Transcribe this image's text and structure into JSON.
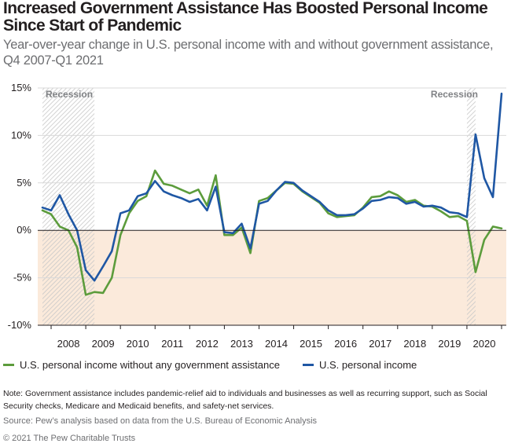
{
  "header": {
    "title": "Increased Government Assistance Has Boosted Personal Income Since Start of Pandemic",
    "subtitle": "Year-over-year change in U.S. personal income with and without government assistance, Q4 2007-Q1 2021"
  },
  "legend": {
    "items": [
      {
        "label": "U.S. personal income without any government assistance",
        "color": "#5c9c3c"
      },
      {
        "label": "U.S. personal income",
        "color": "#1f57a4"
      }
    ]
  },
  "footer": {
    "note": "Note: Government assistance includes pandemic-relief aid to individuals and businesses as well as recurring support, such as Social Security checks, Medicare and Medicaid benefits, and safety-net services.",
    "source": "Source: Pew’s analysis based on data from the U.S. Bureau of Economic Analysis",
    "copyright": "© 2021 The Pew Charitable Trusts"
  },
  "colors": {
    "negative_region": "#fbeadb",
    "recession_hatch": "#c8c8c8",
    "gridline": "#d9d9d9",
    "zero_line": "#231f20",
    "axis_text": "#231f20",
    "recession_text": "#808285"
  },
  "chart_data": {
    "type": "line",
    "title": "Increased Government Assistance Has Boosted Personal Income Since Start of Pandemic",
    "subtitle": "Year-over-year change in U.S. personal income with and without government assistance, Q4 2007-Q1 2021",
    "xlabel": "",
    "ylabel": "",
    "x_start": "2007 Q4",
    "x_end": "2021 Q1",
    "xlim": [
      "2007 Q4",
      "2021 Q1"
    ],
    "x_tick_labels": [
      "2008",
      "2009",
      "2010",
      "2011",
      "2012",
      "2013",
      "2014",
      "2015",
      "2016",
      "2017",
      "2018",
      "2019",
      "2020"
    ],
    "y_tick_labels": [
      "15%",
      "10%",
      "5%",
      "0%",
      "-5%",
      "-10%"
    ],
    "y_ticks": [
      15,
      10,
      5,
      0,
      -5,
      -10
    ],
    "ylim": [
      -10,
      15
    ],
    "grid": true,
    "legend_position": "bottom",
    "negative_region_shaded": true,
    "recessions": [
      {
        "label": "Recession",
        "start": "2007 Q4",
        "end": "2009 Q2"
      },
      {
        "label": "Recession",
        "start": "2020 Q1",
        "end": "2020 Q2"
      }
    ],
    "series": [
      {
        "name": "U.S. personal income without any government assistance",
        "color": "#5c9c3c",
        "points": [
          [
            "2007 Q4",
            2.1
          ],
          [
            "2008 Q1",
            1.7
          ],
          [
            "2008 Q2",
            0.4
          ],
          [
            "2008 Q3",
            0.0
          ],
          [
            "2008 Q4",
            -1.8
          ],
          [
            "2009 Q1",
            -6.8
          ],
          [
            "2009 Q2",
            -6.5
          ],
          [
            "2009 Q3",
            -6.6
          ],
          [
            "2009 Q4",
            -5.0
          ],
          [
            "2010 Q1",
            -0.5
          ],
          [
            "2010 Q2",
            1.8
          ],
          [
            "2010 Q3",
            3.1
          ],
          [
            "2010 Q4",
            3.6
          ],
          [
            "2011 Q1",
            6.3
          ],
          [
            "2011 Q2",
            4.9
          ],
          [
            "2011 Q3",
            4.7
          ],
          [
            "2011 Q4",
            4.3
          ],
          [
            "2012 Q1",
            3.9
          ],
          [
            "2012 Q2",
            4.3
          ],
          [
            "2012 Q3",
            2.6
          ],
          [
            "2012 Q4",
            5.8
          ],
          [
            "2013 Q1",
            -0.5
          ],
          [
            "2013 Q2",
            -0.5
          ],
          [
            "2013 Q3",
            0.3
          ],
          [
            "2013 Q4",
            -2.4
          ],
          [
            "2014 Q1",
            3.1
          ],
          [
            "2014 Q2",
            3.4
          ],
          [
            "2014 Q3",
            4.2
          ],
          [
            "2014 Q4",
            5.0
          ],
          [
            "2015 Q1",
            4.9
          ],
          [
            "2015 Q2",
            4.1
          ],
          [
            "2015 Q3",
            3.5
          ],
          [
            "2015 Q4",
            2.9
          ],
          [
            "2016 Q1",
            1.8
          ],
          [
            "2016 Q2",
            1.4
          ],
          [
            "2016 Q3",
            1.5
          ],
          [
            "2016 Q4",
            1.6
          ],
          [
            "2017 Q1",
            2.4
          ],
          [
            "2017 Q2",
            3.5
          ],
          [
            "2017 Q3",
            3.6
          ],
          [
            "2017 Q4",
            4.1
          ],
          [
            "2018 Q1",
            3.7
          ],
          [
            "2018 Q2",
            3.0
          ],
          [
            "2018 Q3",
            3.2
          ],
          [
            "2018 Q4",
            2.6
          ],
          [
            "2019 Q1",
            2.5
          ],
          [
            "2019 Q2",
            2.0
          ],
          [
            "2019 Q3",
            1.4
          ],
          [
            "2019 Q4",
            1.5
          ],
          [
            "2020 Q1",
            1.0
          ],
          [
            "2020 Q2",
            -4.4
          ],
          [
            "2020 Q3",
            -1.0
          ],
          [
            "2020 Q4",
            0.4
          ],
          [
            "2021 Q1",
            0.2
          ]
        ]
      },
      {
        "name": "U.S. personal income",
        "color": "#1f57a4",
        "points": [
          [
            "2007 Q4",
            2.4
          ],
          [
            "2008 Q1",
            2.1
          ],
          [
            "2008 Q2",
            3.7
          ],
          [
            "2008 Q3",
            1.7
          ],
          [
            "2008 Q4",
            0.0
          ],
          [
            "2009 Q1",
            -4.2
          ],
          [
            "2009 Q2",
            -5.3
          ],
          [
            "2009 Q3",
            -3.8
          ],
          [
            "2009 Q4",
            -2.2
          ],
          [
            "2010 Q1",
            1.8
          ],
          [
            "2010 Q2",
            2.1
          ],
          [
            "2010 Q3",
            3.6
          ],
          [
            "2010 Q4",
            3.9
          ],
          [
            "2011 Q1",
            5.2
          ],
          [
            "2011 Q2",
            4.1
          ],
          [
            "2011 Q3",
            3.7
          ],
          [
            "2011 Q4",
            3.4
          ],
          [
            "2012 Q1",
            3.0
          ],
          [
            "2012 Q2",
            3.3
          ],
          [
            "2012 Q3",
            2.1
          ],
          [
            "2012 Q4",
            4.6
          ],
          [
            "2013 Q1",
            -0.2
          ],
          [
            "2013 Q2",
            -0.3
          ],
          [
            "2013 Q3",
            0.7
          ],
          [
            "2013 Q4",
            -1.9
          ],
          [
            "2014 Q1",
            2.8
          ],
          [
            "2014 Q2",
            3.1
          ],
          [
            "2014 Q3",
            4.2
          ],
          [
            "2014 Q4",
            5.1
          ],
          [
            "2015 Q1",
            5.0
          ],
          [
            "2015 Q2",
            4.2
          ],
          [
            "2015 Q3",
            3.6
          ],
          [
            "2015 Q4",
            3.0
          ],
          [
            "2016 Q1",
            2.1
          ],
          [
            "2016 Q2",
            1.6
          ],
          [
            "2016 Q3",
            1.6
          ],
          [
            "2016 Q4",
            1.7
          ],
          [
            "2017 Q1",
            2.3
          ],
          [
            "2017 Q2",
            3.1
          ],
          [
            "2017 Q3",
            3.2
          ],
          [
            "2017 Q4",
            3.5
          ],
          [
            "2018 Q1",
            3.4
          ],
          [
            "2018 Q2",
            2.8
          ],
          [
            "2018 Q3",
            3.0
          ],
          [
            "2018 Q4",
            2.5
          ],
          [
            "2019 Q1",
            2.6
          ],
          [
            "2019 Q2",
            2.4
          ],
          [
            "2019 Q3",
            1.9
          ],
          [
            "2019 Q4",
            1.8
          ],
          [
            "2020 Q1",
            1.4
          ],
          [
            "2020 Q2",
            10.1
          ],
          [
            "2020 Q3",
            5.5
          ],
          [
            "2020 Q4",
            3.5
          ],
          [
            "2021 Q1",
            14.4
          ]
        ]
      }
    ]
  }
}
